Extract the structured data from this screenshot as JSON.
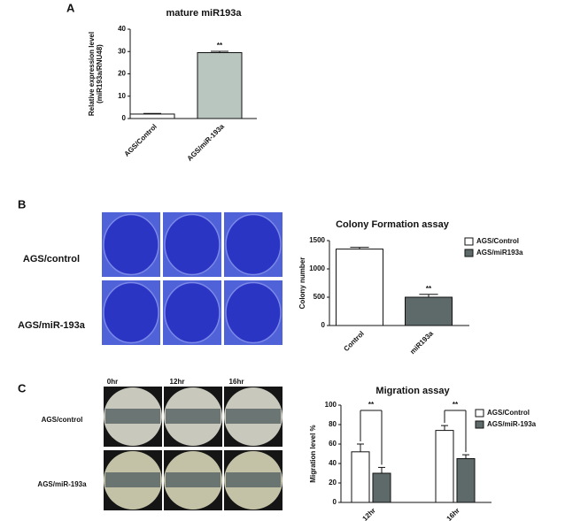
{
  "figure": {
    "panels": [
      "A",
      "B",
      "C"
    ],
    "colony_rows": [
      "AGS/control",
      "AGS/miR-193a"
    ],
    "migration_columns": [
      "0hr",
      "12hr",
      "16hr"
    ],
    "migration_rows": [
      "AGS/control",
      "AGS/miR-193a"
    ]
  },
  "chart_data": [
    {
      "type": "bar",
      "title": "mature miR193a",
      "ylabel": [
        "Relative expression level",
        "(miR193a/RNU48)"
      ],
      "categories": [
        "AGS/Control",
        "AGS/miR-193a"
      ],
      "values": [
        2,
        29.5
      ],
      "errors": [
        0.3,
        0.6
      ],
      "colors": [
        "#ffffff",
        "#b9c5bf"
      ],
      "annotations": [
        null,
        "**"
      ],
      "ylim": [
        0,
        40
      ],
      "yticks": [
        0,
        10,
        20,
        30,
        40
      ]
    },
    {
      "type": "bar",
      "title": "Colony Formation assay",
      "ylabel": [
        "Colony number"
      ],
      "categories": [
        "Control",
        "miR193a"
      ],
      "values": [
        1350,
        500
      ],
      "errors": [
        30,
        50
      ],
      "colors": [
        "#ffffff",
        "#5e6a6a"
      ],
      "annotations": [
        null,
        "**"
      ],
      "legend": [
        {
          "name": "AGS/Control",
          "color": "#ffffff"
        },
        {
          "name": "AGS/miR193a",
          "color": "#5e6a6a"
        }
      ],
      "legend_position": "upper right",
      "ylim": [
        0,
        1500
      ],
      "yticks": [
        0,
        500,
        1000,
        1500
      ]
    },
    {
      "type": "grouped_bar",
      "title": "Migration assay",
      "ylabel": [
        "Migration level %"
      ],
      "categories": [
        "12hr",
        "16hr"
      ],
      "series": [
        {
          "name": "AGS/Control",
          "color": "#ffffff",
          "values": [
            52,
            74
          ],
          "errors": [
            8,
            5
          ]
        },
        {
          "name": "AGS/miR-193a",
          "color": "#5e6a6a",
          "values": [
            30,
            45
          ],
          "errors": [
            6,
            4
          ]
        }
      ],
      "annotations": [
        "**",
        "**"
      ],
      "legend_position": "upper right",
      "ylim": [
        0,
        100
      ],
      "yticks": [
        0,
        20,
        40,
        60,
        80,
        100
      ]
    }
  ]
}
